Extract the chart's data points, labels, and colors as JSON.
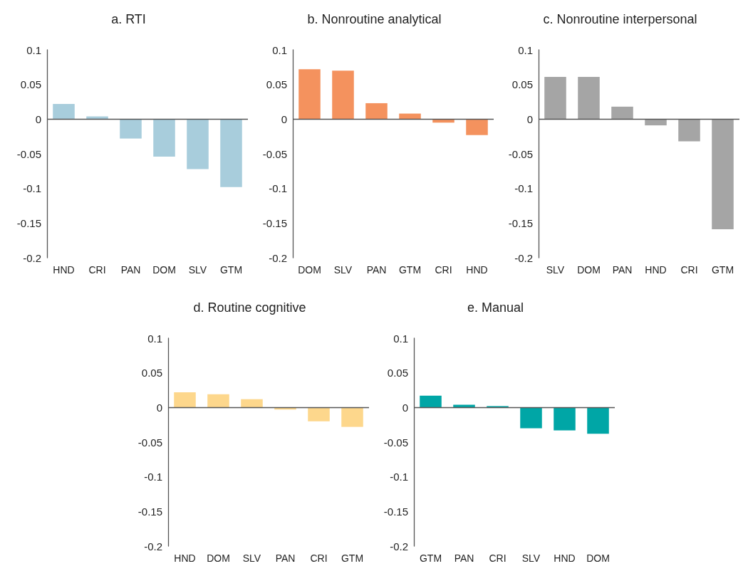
{
  "chart_data": [
    {
      "type": "bar",
      "title": "a. RTI",
      "categories": [
        "HND",
        "CRI",
        "PAN",
        "DOM",
        "SLV",
        "GTM"
      ],
      "values": [
        0.022,
        0.004,
        -0.028,
        -0.054,
        -0.072,
        -0.098
      ],
      "color": "#a8cddc",
      "ylim": [
        -0.2,
        0.1
      ],
      "yticks": [
        -0.2,
        -0.15,
        -0.1,
        -0.05,
        0,
        0.05,
        0.1
      ],
      "grid": false,
      "ref_lines": [
        {
          "axis": "y",
          "value": 0,
          "color": "#555555"
        }
      ]
    },
    {
      "type": "bar",
      "title": "b. Nonroutine analytical",
      "categories": [
        "DOM",
        "SLV",
        "PAN",
        "GTM",
        "CRI",
        "HND"
      ],
      "values": [
        0.072,
        0.07,
        0.023,
        0.008,
        -0.005,
        -0.023
      ],
      "color": "#f4925e",
      "ylim": [
        -0.2,
        0.1
      ],
      "yticks": [
        -0.2,
        -0.15,
        -0.1,
        -0.05,
        0,
        0.05,
        0.1
      ],
      "grid": false,
      "ref_lines": [
        {
          "axis": "y",
          "value": 0,
          "color": "#555555"
        }
      ]
    },
    {
      "type": "bar",
      "title": "c. Nonroutine interpersonal",
      "categories": [
        "SLV",
        "DOM",
        "PAN",
        "HND",
        "CRI",
        "GTM"
      ],
      "values": [
        0.061,
        0.061,
        0.018,
        -0.009,
        -0.032,
        -0.159
      ],
      "color": "#a5a5a5",
      "ylim": [
        -0.2,
        0.1
      ],
      "yticks": [
        -0.2,
        -0.15,
        -0.1,
        -0.05,
        0,
        0.05,
        0.1
      ],
      "grid": false,
      "ref_lines": [
        {
          "axis": "y",
          "value": 0,
          "color": "#555555"
        }
      ]
    },
    {
      "type": "bar",
      "title": "d. Routine cognitive",
      "categories": [
        "HND",
        "DOM",
        "SLV",
        "PAN",
        "CRI",
        "GTM"
      ],
      "values": [
        0.022,
        0.019,
        0.012,
        -0.003,
        -0.02,
        -0.028
      ],
      "color": "#fdd78c",
      "ylim": [
        -0.2,
        0.1
      ],
      "yticks": [
        -0.2,
        -0.15,
        -0.1,
        -0.05,
        0,
        0.05,
        0.1
      ],
      "grid": false,
      "ref_lines": [
        {
          "axis": "y",
          "value": 0,
          "color": "#555555"
        }
      ]
    },
    {
      "type": "bar",
      "title": "e. Manual",
      "categories": [
        "GTM",
        "PAN",
        "CRI",
        "SLV",
        "HND",
        "DOM"
      ],
      "values": [
        0.017,
        0.004,
        0.002,
        -0.03,
        -0.033,
        -0.038
      ],
      "color": "#00a6a6",
      "ylim": [
        -0.2,
        0.1
      ],
      "yticks": [
        -0.2,
        -0.15,
        -0.1,
        -0.05,
        0,
        0.05,
        0.1
      ],
      "grid": false,
      "ref_lines": [
        {
          "axis": "y",
          "value": 0,
          "color": "#555555"
        }
      ]
    }
  ]
}
